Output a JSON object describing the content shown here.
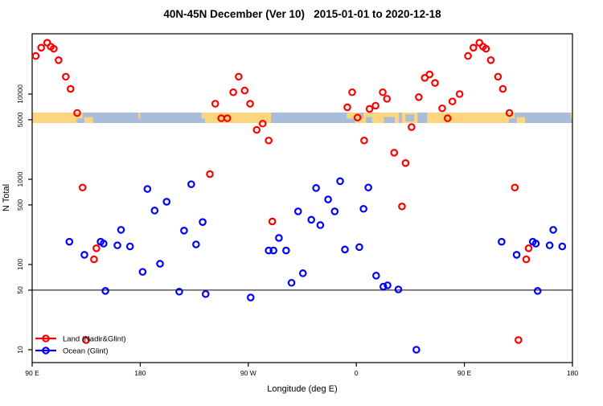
{
  "title": "40N-45N December (Ver 10)   2015-01-01 to 2020-12-18",
  "x_axis": {
    "label": "Longitude (deg E)",
    "ticks": [
      {
        "pos": 90,
        "label": "90 E"
      },
      {
        "pos": 180,
        "label": "180"
      },
      {
        "pos": 270,
        "label": "90 W"
      },
      {
        "pos": 360,
        "label": "0"
      },
      {
        "pos": 450,
        "label": "90 E"
      },
      {
        "pos": 540,
        "label": "180"
      }
    ]
  },
  "y_axis": {
    "label": "N Total",
    "ticks": [
      10,
      50,
      100,
      500,
      1000,
      5000,
      10000
    ]
  },
  "reference_line_value": 50,
  "legend": {
    "items": [
      {
        "label": "Land (Nadir&Glint)",
        "color": "#ff0000"
      },
      {
        "label": "Ocean (Glint)",
        "color": "#0000ff"
      }
    ]
  },
  "colors": {
    "land_series": "#ff0000",
    "ocean_series": "#0000ff",
    "band_land": "#FBD67E",
    "band_ocean": "#A9BCD9",
    "frame": "#000000"
  },
  "chart_data": {
    "type": "scatter",
    "title": "40N-45N December (Ver 10)   2015-01-01 to 2020-12-18",
    "xlabel": "Longitude (deg E)",
    "ylabel": "N Total",
    "x_unit": "degrees east; axis runs 90E to 180 through 450 deg, longitudes 90E-180E are plotted twice (left and right ends)",
    "x_axis_span_deg": [
      90,
      540
    ],
    "y_scale": "log10",
    "y_axis_approx_range": [
      7,
      50000
    ],
    "grid": false,
    "reference_line_y": 50,
    "legend_position": "bottom-left inside plot",
    "series": [
      {
        "name": "Land (Nadir&Glint)",
        "color": "#ff0000",
        "points_lon_n": [
          [
            93,
            28000
          ],
          [
            97.5,
            35000
          ],
          [
            102.5,
            40000
          ],
          [
            105.5,
            36000
          ],
          [
            108,
            34000
          ],
          [
            112,
            25000
          ],
          [
            118,
            16000
          ],
          [
            122,
            11500
          ],
          [
            127.5,
            6000
          ],
          [
            132,
            800
          ],
          [
            135,
            13
          ],
          [
            141.5,
            115
          ],
          [
            143.5,
            155
          ],
          [
            -122,
            1150
          ],
          [
            -117.5,
            7700
          ],
          [
            -112.5,
            5200
          ],
          [
            -107.5,
            5200
          ],
          [
            -102.5,
            10500
          ],
          [
            -98,
            16000
          ],
          [
            -93,
            11000
          ],
          [
            -88.5,
            7700
          ],
          [
            -83,
            3800
          ],
          [
            -78,
            4500
          ],
          [
            -73,
            2850
          ],
          [
            -70,
            320
          ],
          [
            -7.5,
            7000
          ],
          [
            -3.5,
            10500
          ],
          [
            1,
            5300
          ],
          [
            6.5,
            2850
          ],
          [
            11,
            6700
          ],
          [
            16,
            7300
          ],
          [
            22,
            10500
          ],
          [
            25.5,
            8800
          ],
          [
            31.5,
            2050
          ],
          [
            38,
            480
          ],
          [
            41,
            1550
          ],
          [
            46,
            4100
          ],
          [
            52,
            9200
          ],
          [
            57,
            15500
          ],
          [
            61,
            17000
          ],
          [
            65.5,
            13500
          ],
          [
            71.5,
            6800
          ],
          [
            76,
            5200
          ],
          [
            80,
            8200
          ],
          [
            86,
            10000
          ]
        ]
      },
      {
        "name": "Ocean (Glint)",
        "color": "#0000ff",
        "points_lon_n": [
          [
            121,
            185
          ],
          [
            133.5,
            130
          ],
          [
            147,
            185
          ],
          [
            149.5,
            176
          ],
          [
            151,
            49
          ],
          [
            161,
            168
          ],
          [
            164,
            255
          ],
          [
            171.5,
            163
          ],
          [
            -178,
            82
          ],
          [
            -174,
            770
          ],
          [
            -168,
            430
          ],
          [
            -163.5,
            102
          ],
          [
            -158,
            545
          ],
          [
            -147.5,
            48
          ],
          [
            -143.5,
            250
          ],
          [
            -137.5,
            875
          ],
          [
            -133.5,
            172
          ],
          [
            -128,
            315
          ],
          [
            -125.5,
            45
          ],
          [
            -88,
            41
          ],
          [
            -73,
            146
          ],
          [
            -69,
            146
          ],
          [
            -64.5,
            205
          ],
          [
            -58.5,
            146
          ],
          [
            -54,
            61
          ],
          [
            -48.5,
            420
          ],
          [
            -44.5,
            79
          ],
          [
            -37.5,
            335
          ],
          [
            -33.5,
            790
          ],
          [
            -30,
            290
          ],
          [
            -23.5,
            580
          ],
          [
            -18,
            420
          ],
          [
            -13.5,
            950
          ],
          [
            -9.5,
            150
          ],
          [
            2.5,
            160
          ],
          [
            6,
            450
          ],
          [
            10,
            800
          ],
          [
            16.5,
            74
          ],
          [
            22.5,
            55
          ],
          [
            26,
            57
          ],
          [
            35,
            51
          ],
          [
            50,
            10
          ]
        ]
      }
    ],
    "surface_band": {
      "description": "horizontal land/ocean strip drawn across the plot near N=5000 showing surface type versus longitude in the 40N-45N latitude belt",
      "approx_n_level": 4500,
      "land_color": "#FBD67E",
      "ocean_color": "#A9BCD9",
      "land_segments": [
        {
          "lon": [
            90,
            127
          ],
          "extent": "full"
        },
        {
          "lon": [
            127,
            132
          ],
          "extent": "top"
        },
        {
          "lon": [
            133.5,
            140.5
          ],
          "extent": "bottom"
        },
        {
          "lon": [
            178.5,
            180
          ],
          "extent": "top"
        },
        {
          "lon": [
            -129,
            -126
          ],
          "extent": "top"
        },
        {
          "lon": [
            -126,
            -71
          ],
          "extent": "full"
        },
        {
          "lon": [
            -8,
            -1
          ],
          "extent": "top"
        },
        {
          "lon": [
            -1,
            90
          ],
          "extent": "full"
        }
      ],
      "ocean_patches_over_land": [
        {
          "lon": [
            3,
            6
          ],
          "extent": "top"
        },
        {
          "lon": [
            8,
            13
          ],
          "extent": "bottom"
        },
        {
          "lon": [
            23,
            32
          ],
          "extent": "bottom"
        },
        {
          "lon": [
            35.5,
            38
          ],
          "extent": "full"
        },
        {
          "lon": [
            41,
            48
          ],
          "extent": "mid"
        },
        {
          "lon": [
            51,
            59
          ],
          "extent": "full"
        }
      ]
    }
  }
}
